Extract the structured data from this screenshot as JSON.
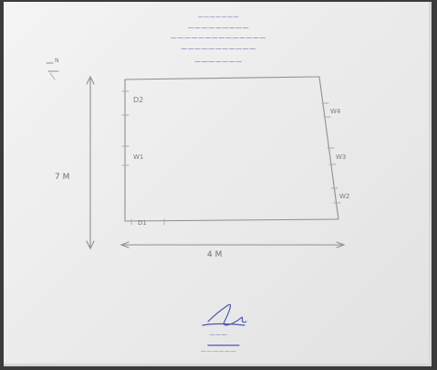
{
  "header": {
    "line1": "———————",
    "line2": "—————————",
    "line3": "——————————————",
    "line4": "———————————",
    "line5": "———————"
  },
  "diagram": {
    "north_marker": "N",
    "labels": {
      "d2": "D2",
      "w1": "W1",
      "d1": "D1",
      "w4": "W4",
      "w3": "W3",
      "w2": "W2"
    },
    "dimension_height": "7 M",
    "dimension_width": "4 M"
  },
  "signature": {
    "designation": "———",
    "line": "——————"
  },
  "colors": {
    "pencil": "#8f8f8f",
    "ink": "#4a58a8",
    "paper": "#efefef"
  }
}
